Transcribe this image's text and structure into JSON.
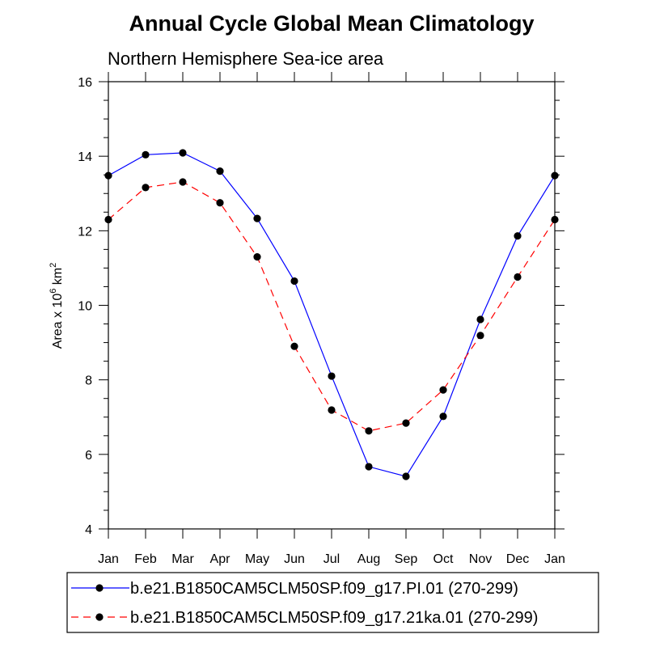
{
  "chart_data": {
    "type": "line",
    "title": "Annual Cycle Global Mean Climatology",
    "subtitle": "Northern Hemisphere Sea-ice area",
    "ylabel": "Area x 10",
    "ylabel_sup": "6",
    "ylabel_unit": "km",
    "ylabel_unit_sup": "2",
    "xlabel": "",
    "categories": [
      "Jan",
      "Feb",
      "Mar",
      "Apr",
      "May",
      "Jun",
      "Jul",
      "Aug",
      "Sep",
      "Oct",
      "Nov",
      "Dec",
      "Jan"
    ],
    "yticks": [
      4,
      6,
      8,
      10,
      12,
      14,
      16
    ],
    "ylim": [
      4,
      16
    ],
    "series": [
      {
        "name": "b.e21.B1850CAM5CLM50SP.f09_g17.PI.01 (270-299)",
        "color": "#0000ff",
        "dash": "solid",
        "values": [
          13.48,
          14.04,
          14.09,
          13.6,
          12.33,
          10.65,
          8.1,
          5.67,
          5.41,
          7.02,
          9.62,
          11.86,
          13.48
        ]
      },
      {
        "name": "b.e21.B1850CAM5CLM50SP.f09_g17.21ka.01 (270-299)",
        "color": "#ff0000",
        "dash": "dashed",
        "values": [
          12.3,
          13.16,
          13.31,
          12.75,
          11.3,
          8.9,
          7.19,
          6.63,
          6.84,
          7.73,
          9.19,
          10.76,
          12.3
        ]
      }
    ]
  }
}
